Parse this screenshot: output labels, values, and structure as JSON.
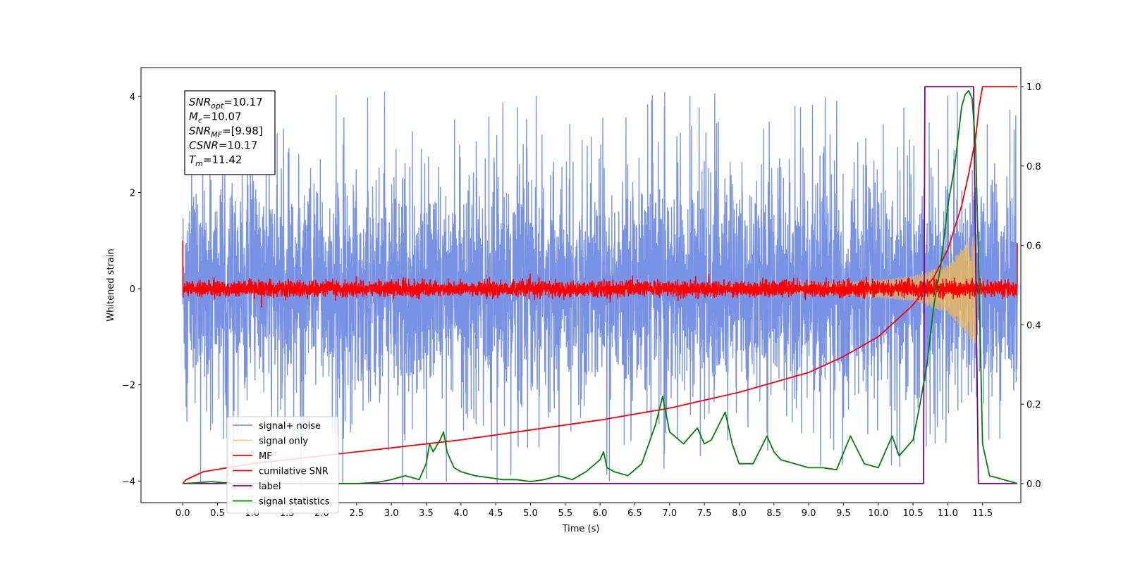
{
  "chart_data": {
    "type": "line",
    "xlabel": "Time (s)",
    "ylabel": "Whitened strain",
    "xlim": [
      -0.6,
      12.05
    ],
    "ylim": [
      -4.45,
      4.6
    ],
    "y2lim": [
      -0.048,
      1.048
    ],
    "x_ticks": [
      "0.0",
      "0.5",
      "1.0",
      "1.5",
      "2.0",
      "2.5",
      "3.0",
      "3.5",
      "4.0",
      "4.5",
      "5.0",
      "5.5",
      "6.0",
      "6.5",
      "7.0",
      "7.5",
      "8.0",
      "8.5",
      "9.0",
      "9.5",
      "10.0",
      "10.5",
      "11.0",
      "11.5"
    ],
    "y_ticks": [
      "4",
      "2",
      "0",
      "−2",
      "−4"
    ],
    "y2_ticks": [
      "1.0",
      "0.8",
      "0.6",
      "0.4",
      "0.2",
      "0.0"
    ],
    "annotation": [
      {
        "main": "SNR",
        "sub": "opt",
        "value": "=10.17"
      },
      {
        "main": "M",
        "sub": "c",
        "value": "=10.07"
      },
      {
        "main": "SNR",
        "sub": "MF",
        "value": "=[9.98]"
      },
      {
        "main": "CSNR",
        "sub": "",
        "value": "=10.17"
      },
      {
        "main": "T",
        "sub": "m",
        "value": "=11.42"
      }
    ],
    "legend_position": "lower-left",
    "series": [
      {
        "name": "signal+ noise",
        "color": "#7893e6",
        "axis": "left",
        "kind": "noise",
        "x_range": [
          0.0,
          12.0
        ],
        "std": 1.05,
        "peak_abs": 4.1
      },
      {
        "name": "signal only",
        "color": "#f5b950",
        "axis": "left",
        "kind": "chirp",
        "x_range": [
          0.0,
          11.42
        ],
        "envelope": {
          "x": [
            0.0,
            8.0,
            9.5,
            10.5,
            11.0,
            11.42
          ],
          "amp": [
            0.0,
            0.06,
            0.12,
            0.25,
            0.5,
            1.2
          ]
        }
      },
      {
        "name": "MF",
        "color": "#ff0000",
        "axis": "left",
        "kind": "noise",
        "x_range": [
          0.0,
          12.0
        ],
        "std": 0.08,
        "start_value": 1.0,
        "end_value": 0.95
      },
      {
        "name": "cumilative SNR",
        "color": "#ff0000",
        "axis": "right",
        "kind": "curve",
        "x": [
          0.0,
          0.05,
          0.3,
          1.0,
          2.0,
          3.0,
          4.0,
          5.0,
          6.0,
          7.0,
          8.0,
          9.0,
          9.5,
          10.0,
          10.5,
          10.8,
          11.0,
          11.2,
          11.3,
          11.4,
          11.45,
          11.5,
          12.0
        ],
        "y": [
          0.0,
          0.01,
          0.03,
          0.05,
          0.07,
          0.09,
          0.11,
          0.135,
          0.16,
          0.19,
          0.23,
          0.28,
          0.32,
          0.37,
          0.45,
          0.52,
          0.59,
          0.7,
          0.78,
          0.87,
          0.95,
          1.0,
          1.0
        ]
      },
      {
        "name": "label",
        "color": "#800080",
        "axis": "right",
        "kind": "step",
        "x": [
          0.0,
          10.65,
          10.67,
          11.37,
          11.44,
          12.0
        ],
        "y": [
          0.0,
          0.0,
          1.0,
          1.0,
          0.0,
          0.0
        ]
      },
      {
        "name": "signal statistics",
        "color": "#008000",
        "axis": "right",
        "kind": "curve",
        "x": [
          0.0,
          0.2,
          0.4,
          0.6,
          0.8,
          1.0,
          1.5,
          2.0,
          2.5,
          2.8,
          3.0,
          3.2,
          3.4,
          3.5,
          3.55,
          3.6,
          3.7,
          3.75,
          3.8,
          3.9,
          4.0,
          4.2,
          4.4,
          4.6,
          4.8,
          5.0,
          5.2,
          5.4,
          5.6,
          5.8,
          6.0,
          6.05,
          6.1,
          6.2,
          6.4,
          6.6,
          6.8,
          6.9,
          7.0,
          7.2,
          7.4,
          7.5,
          7.6,
          7.8,
          7.9,
          8.0,
          8.2,
          8.4,
          8.5,
          8.6,
          8.8,
          9.0,
          9.2,
          9.4,
          9.6,
          9.8,
          10.0,
          10.2,
          10.3,
          10.5,
          10.6,
          10.7,
          10.8,
          10.9,
          11.0,
          11.1,
          11.2,
          11.25,
          11.3,
          11.35,
          11.4,
          11.45,
          11.5,
          11.6,
          12.0
        ],
        "y": [
          0.0,
          0.002,
          0.005,
          0.002,
          0.0,
          0.0,
          0.0,
          0.0,
          0.0,
          0.003,
          0.01,
          0.02,
          0.01,
          0.05,
          0.1,
          0.08,
          0.11,
          0.13,
          0.08,
          0.04,
          0.03,
          0.02,
          0.015,
          0.01,
          0.01,
          0.005,
          0.01,
          0.02,
          0.01,
          0.03,
          0.06,
          0.08,
          0.04,
          0.03,
          0.02,
          0.05,
          0.15,
          0.22,
          0.13,
          0.1,
          0.14,
          0.1,
          0.11,
          0.18,
          0.1,
          0.05,
          0.05,
          0.12,
          0.08,
          0.06,
          0.05,
          0.04,
          0.04,
          0.035,
          0.12,
          0.05,
          0.04,
          0.12,
          0.07,
          0.11,
          0.2,
          0.3,
          0.45,
          0.55,
          0.7,
          0.8,
          0.95,
          0.98,
          0.99,
          0.97,
          0.85,
          0.5,
          0.1,
          0.02,
          0.0
        ]
      }
    ]
  }
}
